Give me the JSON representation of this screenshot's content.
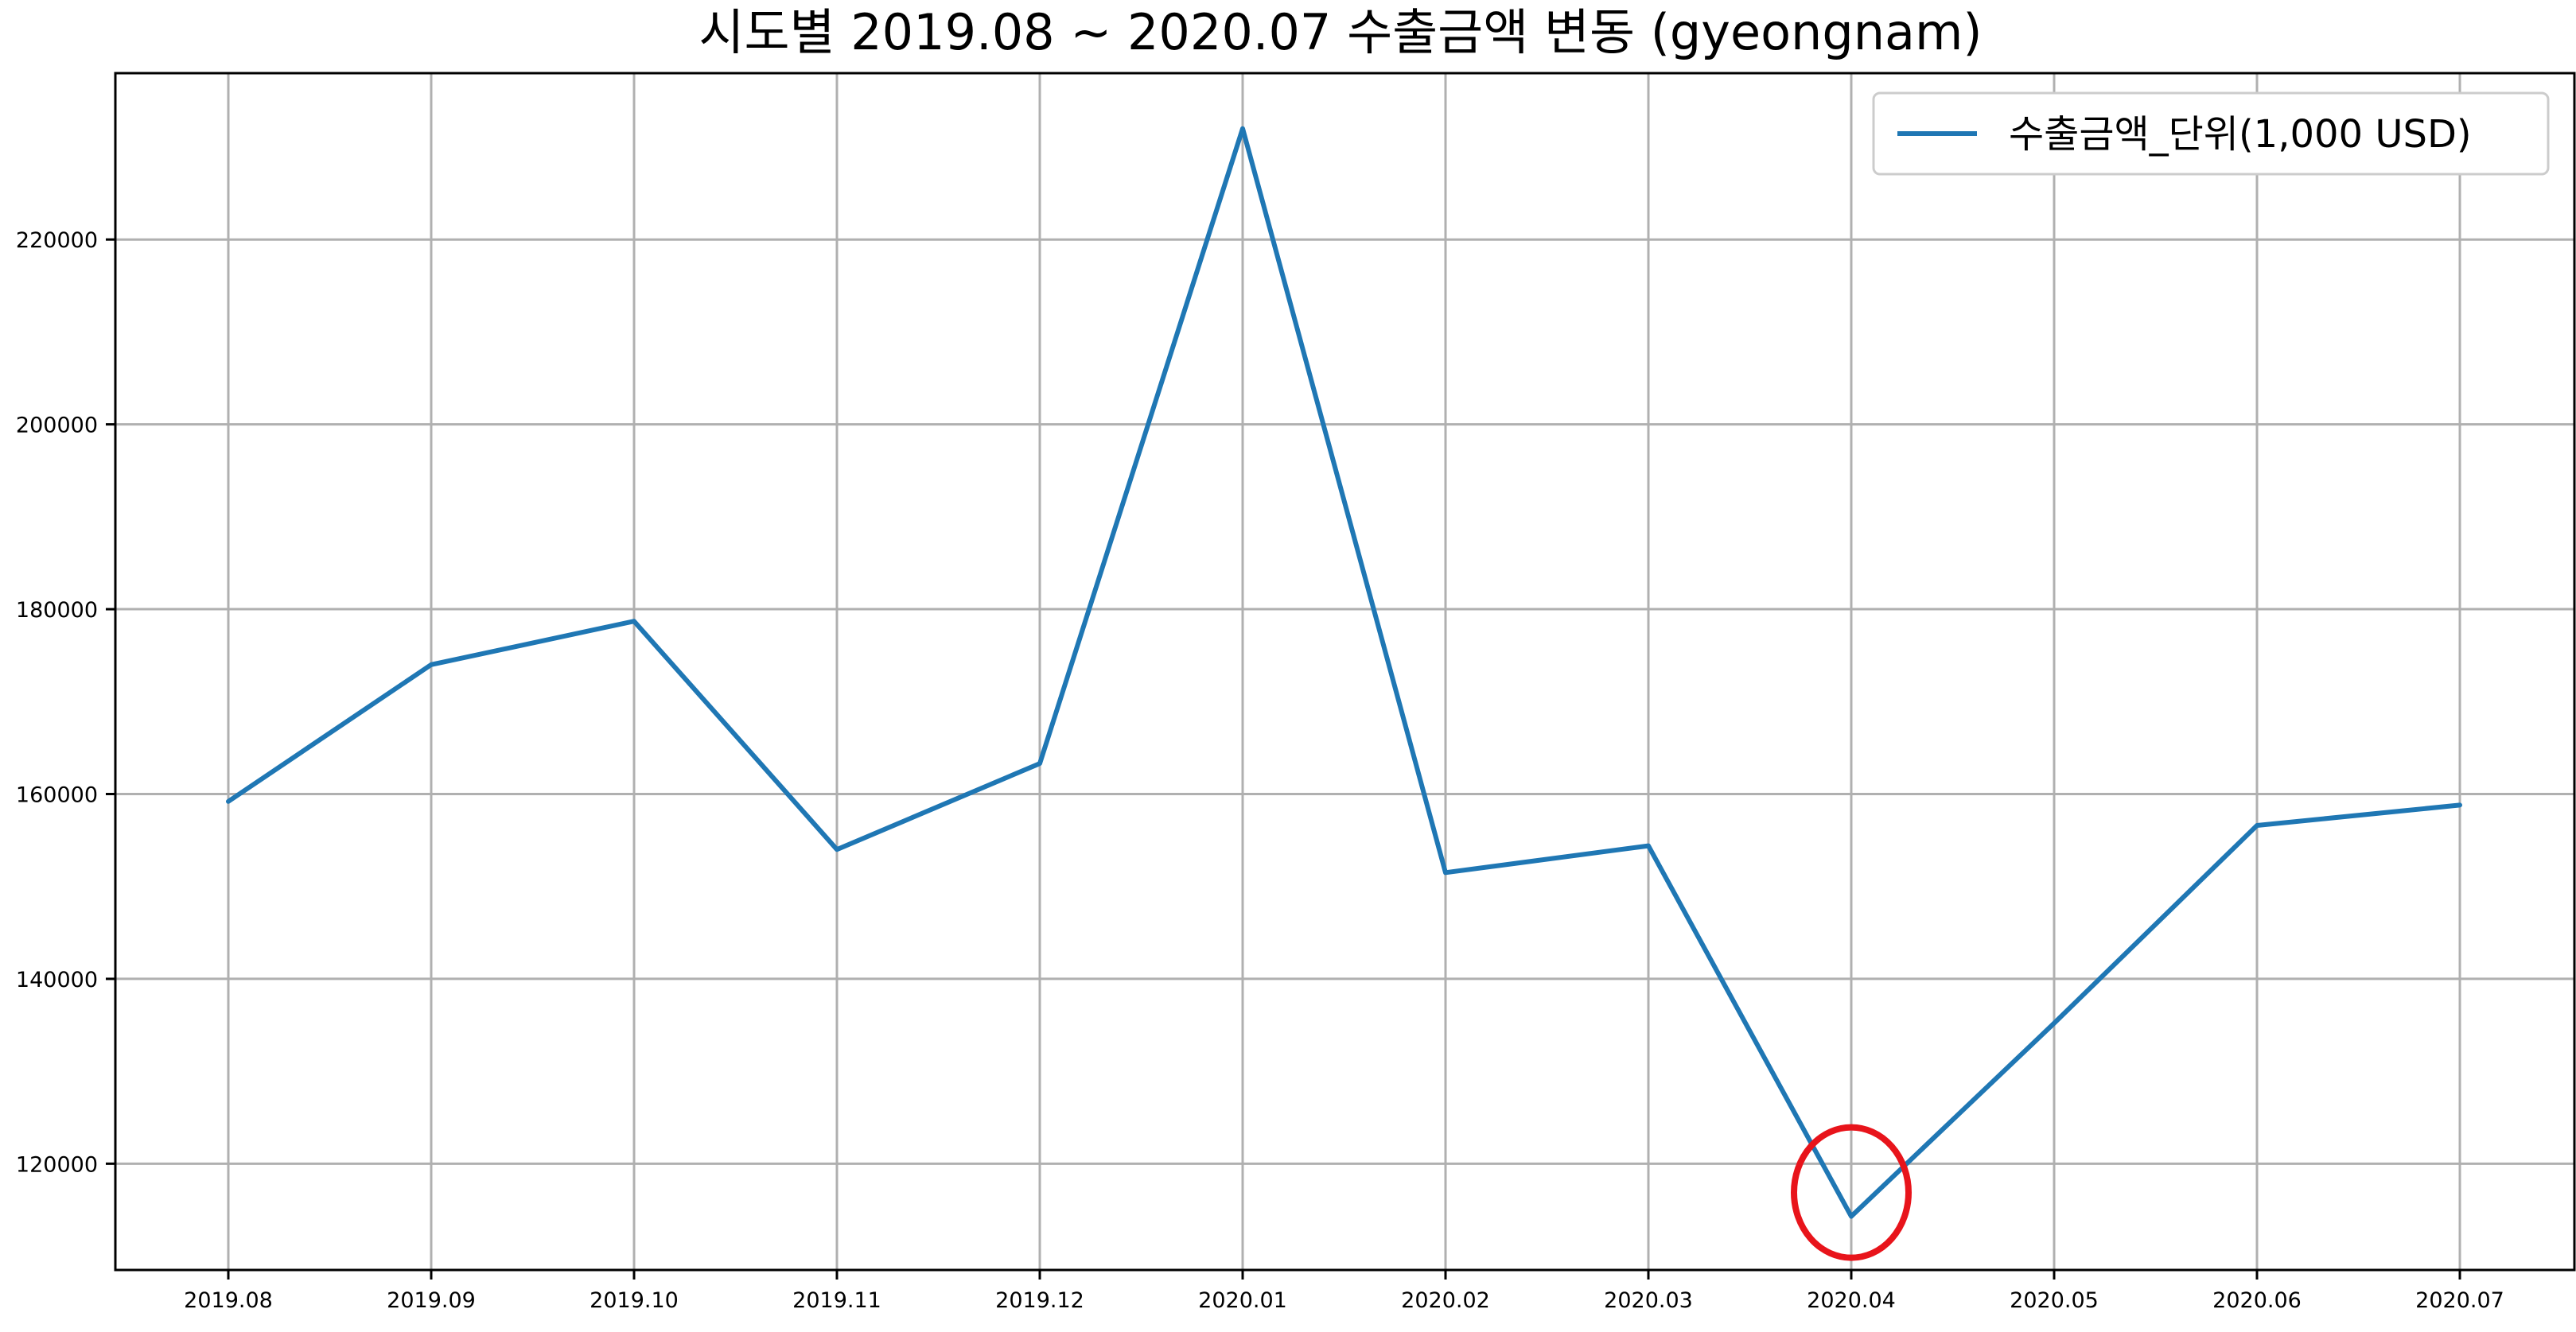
{
  "chart_data": {
    "type": "line",
    "title": "시도별 2019.08 ~ 2020.07 수출금액 변동 (gyeongnam)",
    "xlabel": "",
    "ylabel": "",
    "categories": [
      "2019.08",
      "2019.09",
      "2019.10",
      "2019.11",
      "2019.12",
      "2020.01",
      "2020.02",
      "2020.03",
      "2020.04",
      "2020.05",
      "2020.06",
      "2020.07"
    ],
    "series": [
      {
        "name": "수출금액_단위(1,000 USD)",
        "color": "#1f77b4",
        "values": [
          159200,
          174000,
          178700,
          154000,
          163300,
          232000,
          151500,
          154400,
          114300,
          135200,
          156600,
          158800
        ]
      }
    ],
    "yticks": [
      120000,
      140000,
      160000,
      180000,
      200000,
      220000
    ],
    "ylim": [
      108500,
      238000
    ],
    "grid": true,
    "legend_position": "top-right",
    "annotation": {
      "type": "circle",
      "category": "2020.04",
      "color": "#e8141b"
    }
  }
}
